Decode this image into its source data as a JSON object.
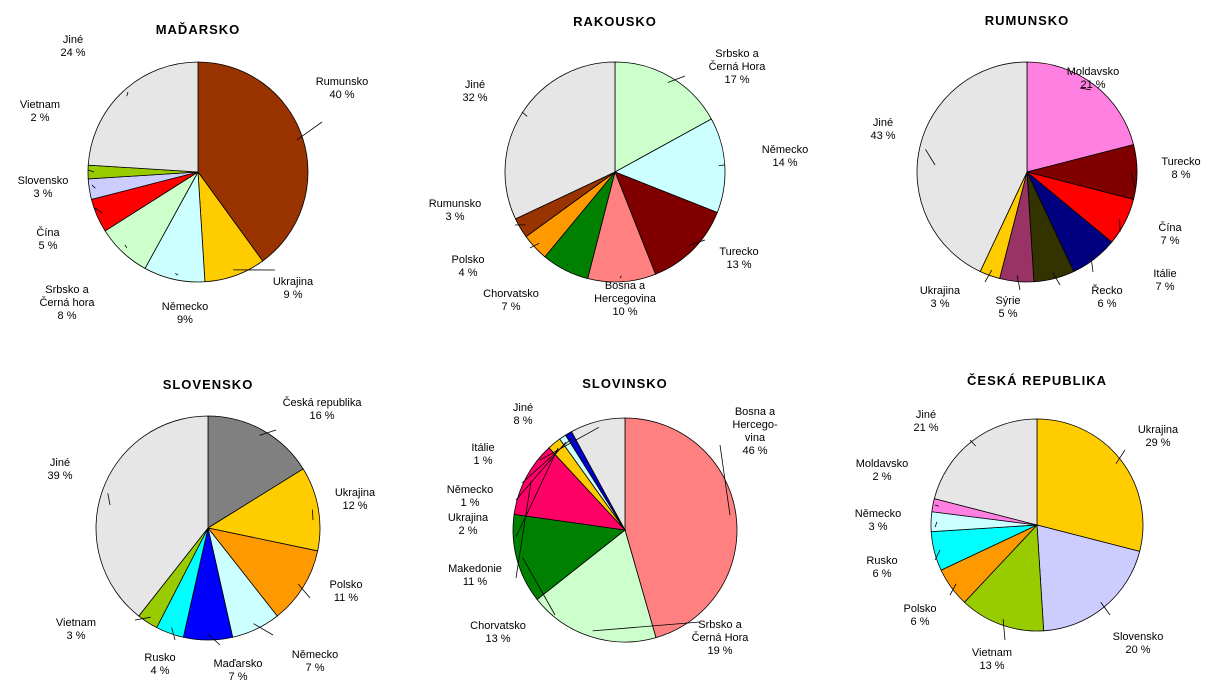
{
  "chart_data": [
    {
      "type": "pie",
      "title": "MAĎARSKO",
      "slices": [
        {
          "label": [
            "Rumunsko",
            "40 %"
          ],
          "value": 40,
          "color": "#993300"
        },
        {
          "label": [
            "Ukrajina",
            "9 %"
          ],
          "value": 9,
          "color": "#FFCC00"
        },
        {
          "label": [
            "Německo",
            "9%"
          ],
          "value": 9,
          "color": "#CCFFFF"
        },
        {
          "label": [
            "Srbsko a",
            "Černá hora",
            "8 %"
          ],
          "value": 8,
          "color": "#CCFFCC"
        },
        {
          "label": [
            "Čína",
            "5 %"
          ],
          "value": 5,
          "color": "#FF0000"
        },
        {
          "label": [
            "Slovensko",
            "3 %"
          ],
          "value": 3,
          "color": "#CCCCFF"
        },
        {
          "label": [
            "Vietnam",
            "2 %"
          ],
          "value": 2,
          "color": "#99CC00"
        },
        {
          "label": [
            "Jiné",
            "24 %"
          ],
          "value": 24,
          "color": "#E6E6E6"
        }
      ]
    },
    {
      "type": "pie",
      "title": "RAKOUSKO",
      "slices": [
        {
          "label": [
            "Srbsko a",
            "Černá Hora",
            "17 %"
          ],
          "value": 17,
          "color": "#CCFFCC"
        },
        {
          "label": [
            "Německo",
            "14 %"
          ],
          "value": 14,
          "color": "#CCFFFF"
        },
        {
          "label": [
            "Turecko",
            "13 %"
          ],
          "value": 13,
          "color": "#800000"
        },
        {
          "label": [
            "Bosna a",
            "Hercegovina",
            "10 %"
          ],
          "value": 10,
          "color": "#FF8080"
        },
        {
          "label": [
            "Chorvatsko",
            "7 %"
          ],
          "value": 7,
          "color": "#008000"
        },
        {
          "label": [
            "Polsko",
            "4 %"
          ],
          "value": 4,
          "color": "#FF9900"
        },
        {
          "label": [
            "Rumunsko",
            "3 %"
          ],
          "value": 3,
          "color": "#993300"
        },
        {
          "label": [
            "Jiné",
            "32 %"
          ],
          "value": 32,
          "color": "#E6E6E6"
        }
      ]
    },
    {
      "type": "pie",
      "title": "RUMUNSKO",
      "slices": [
        {
          "label": [
            "Moldavsko",
            "21 %"
          ],
          "value": 21,
          "color": "#FF80E0"
        },
        {
          "label": [
            "Turecko",
            "8 %"
          ],
          "value": 8,
          "color": "#800000"
        },
        {
          "label": [
            "Čína",
            "7 %"
          ],
          "value": 7,
          "color": "#FF0000"
        },
        {
          "label": [
            "Itálie",
            "7 %"
          ],
          "value": 7,
          "color": "#000080"
        },
        {
          "label": [
            "Řecko",
            "6 %"
          ],
          "value": 6,
          "color": "#333300"
        },
        {
          "label": [
            "Sýrie",
            "5 %"
          ],
          "value": 5,
          "color": "#993366"
        },
        {
          "label": [
            "Ukrajina",
            "3 %"
          ],
          "value": 3,
          "color": "#FFCC00"
        },
        {
          "label": [
            "Jiné",
            "43 %"
          ],
          "value": 43,
          "color": "#E6E6E6"
        }
      ]
    },
    {
      "type": "pie",
      "title": "SLOVENSKO",
      "slices": [
        {
          "label": [
            "Česká republika",
            "16 %"
          ],
          "value": 16,
          "color": "#808080"
        },
        {
          "label": [
            "Ukrajina",
            "12 %"
          ],
          "value": 12,
          "color": "#FFCC00"
        },
        {
          "label": [
            "Polsko",
            "11 %"
          ],
          "value": 11,
          "color": "#FF9900"
        },
        {
          "label": [
            "Německo",
            "7 %"
          ],
          "value": 7,
          "color": "#CCFFFF"
        },
        {
          "label": [
            "Maďarsko",
            "7 %"
          ],
          "value": 7,
          "color": "#0000FF"
        },
        {
          "label": [
            "Rusko",
            "4 %"
          ],
          "value": 4,
          "color": "#00FFFF"
        },
        {
          "label": [
            "Vietnam",
            "3 %"
          ],
          "value": 3,
          "color": "#99CC00"
        },
        {
          "label": [
            "Jiné",
            "39 %"
          ],
          "value": 39,
          "color": "#E6E6E6"
        }
      ]
    },
    {
      "type": "pie",
      "title": "SLOVINSKO",
      "slices": [
        {
          "label": [
            "Bosna a",
            "Hercego-",
            "vina",
            "46 %"
          ],
          "value": 46,
          "color": "#FF8080"
        },
        {
          "label": [
            "Srbsko a",
            "Černá Hora",
            "19 %"
          ],
          "value": 19,
          "color": "#CCFFCC"
        },
        {
          "label": [
            "Chorvatsko",
            "13 %"
          ],
          "value": 13,
          "color": "#008000"
        },
        {
          "label": [
            "Makedonie",
            "11 %"
          ],
          "value": 11,
          "color": "#FF0066"
        },
        {
          "label": [
            "Ukrajina",
            "2 %"
          ],
          "value": 2,
          "color": "#FFCC00"
        },
        {
          "label": [
            "Německo",
            "1 %"
          ],
          "value": 1,
          "color": "#CCFFFF"
        },
        {
          "label": [
            "Itálie",
            "1 %"
          ],
          "value": 1,
          "color": "#0000CC"
        },
        {
          "label": [
            "Jiné",
            "8 %"
          ],
          "value": 8,
          "color": "#E6E6E6"
        }
      ]
    },
    {
      "type": "pie",
      "title": "ČESKÁ REPUBLIKA",
      "slices": [
        {
          "label": [
            "Ukrajina",
            "29 %"
          ],
          "value": 29,
          "color": "#FFCC00"
        },
        {
          "label": [
            "Slovensko",
            "20 %"
          ],
          "value": 20,
          "color": "#CCCCFF"
        },
        {
          "label": [
            "Vietnam",
            "13 %"
          ],
          "value": 13,
          "color": "#99CC00"
        },
        {
          "label": [
            "Polsko",
            "6 %"
          ],
          "value": 6,
          "color": "#FF9900"
        },
        {
          "label": [
            "Rusko",
            "6 %"
          ],
          "value": 6,
          "color": "#00FFFF"
        },
        {
          "label": [
            "Německo",
            "3 %"
          ],
          "value": 3,
          "color": "#CCFFFF"
        },
        {
          "label": [
            "Moldavsko",
            "2 %"
          ],
          "value": 2,
          "color": "#FF80E0"
        },
        {
          "label": [
            "Jiné",
            "21 %"
          ],
          "value": 21,
          "color": "#E6E6E6"
        }
      ]
    }
  ]
}
